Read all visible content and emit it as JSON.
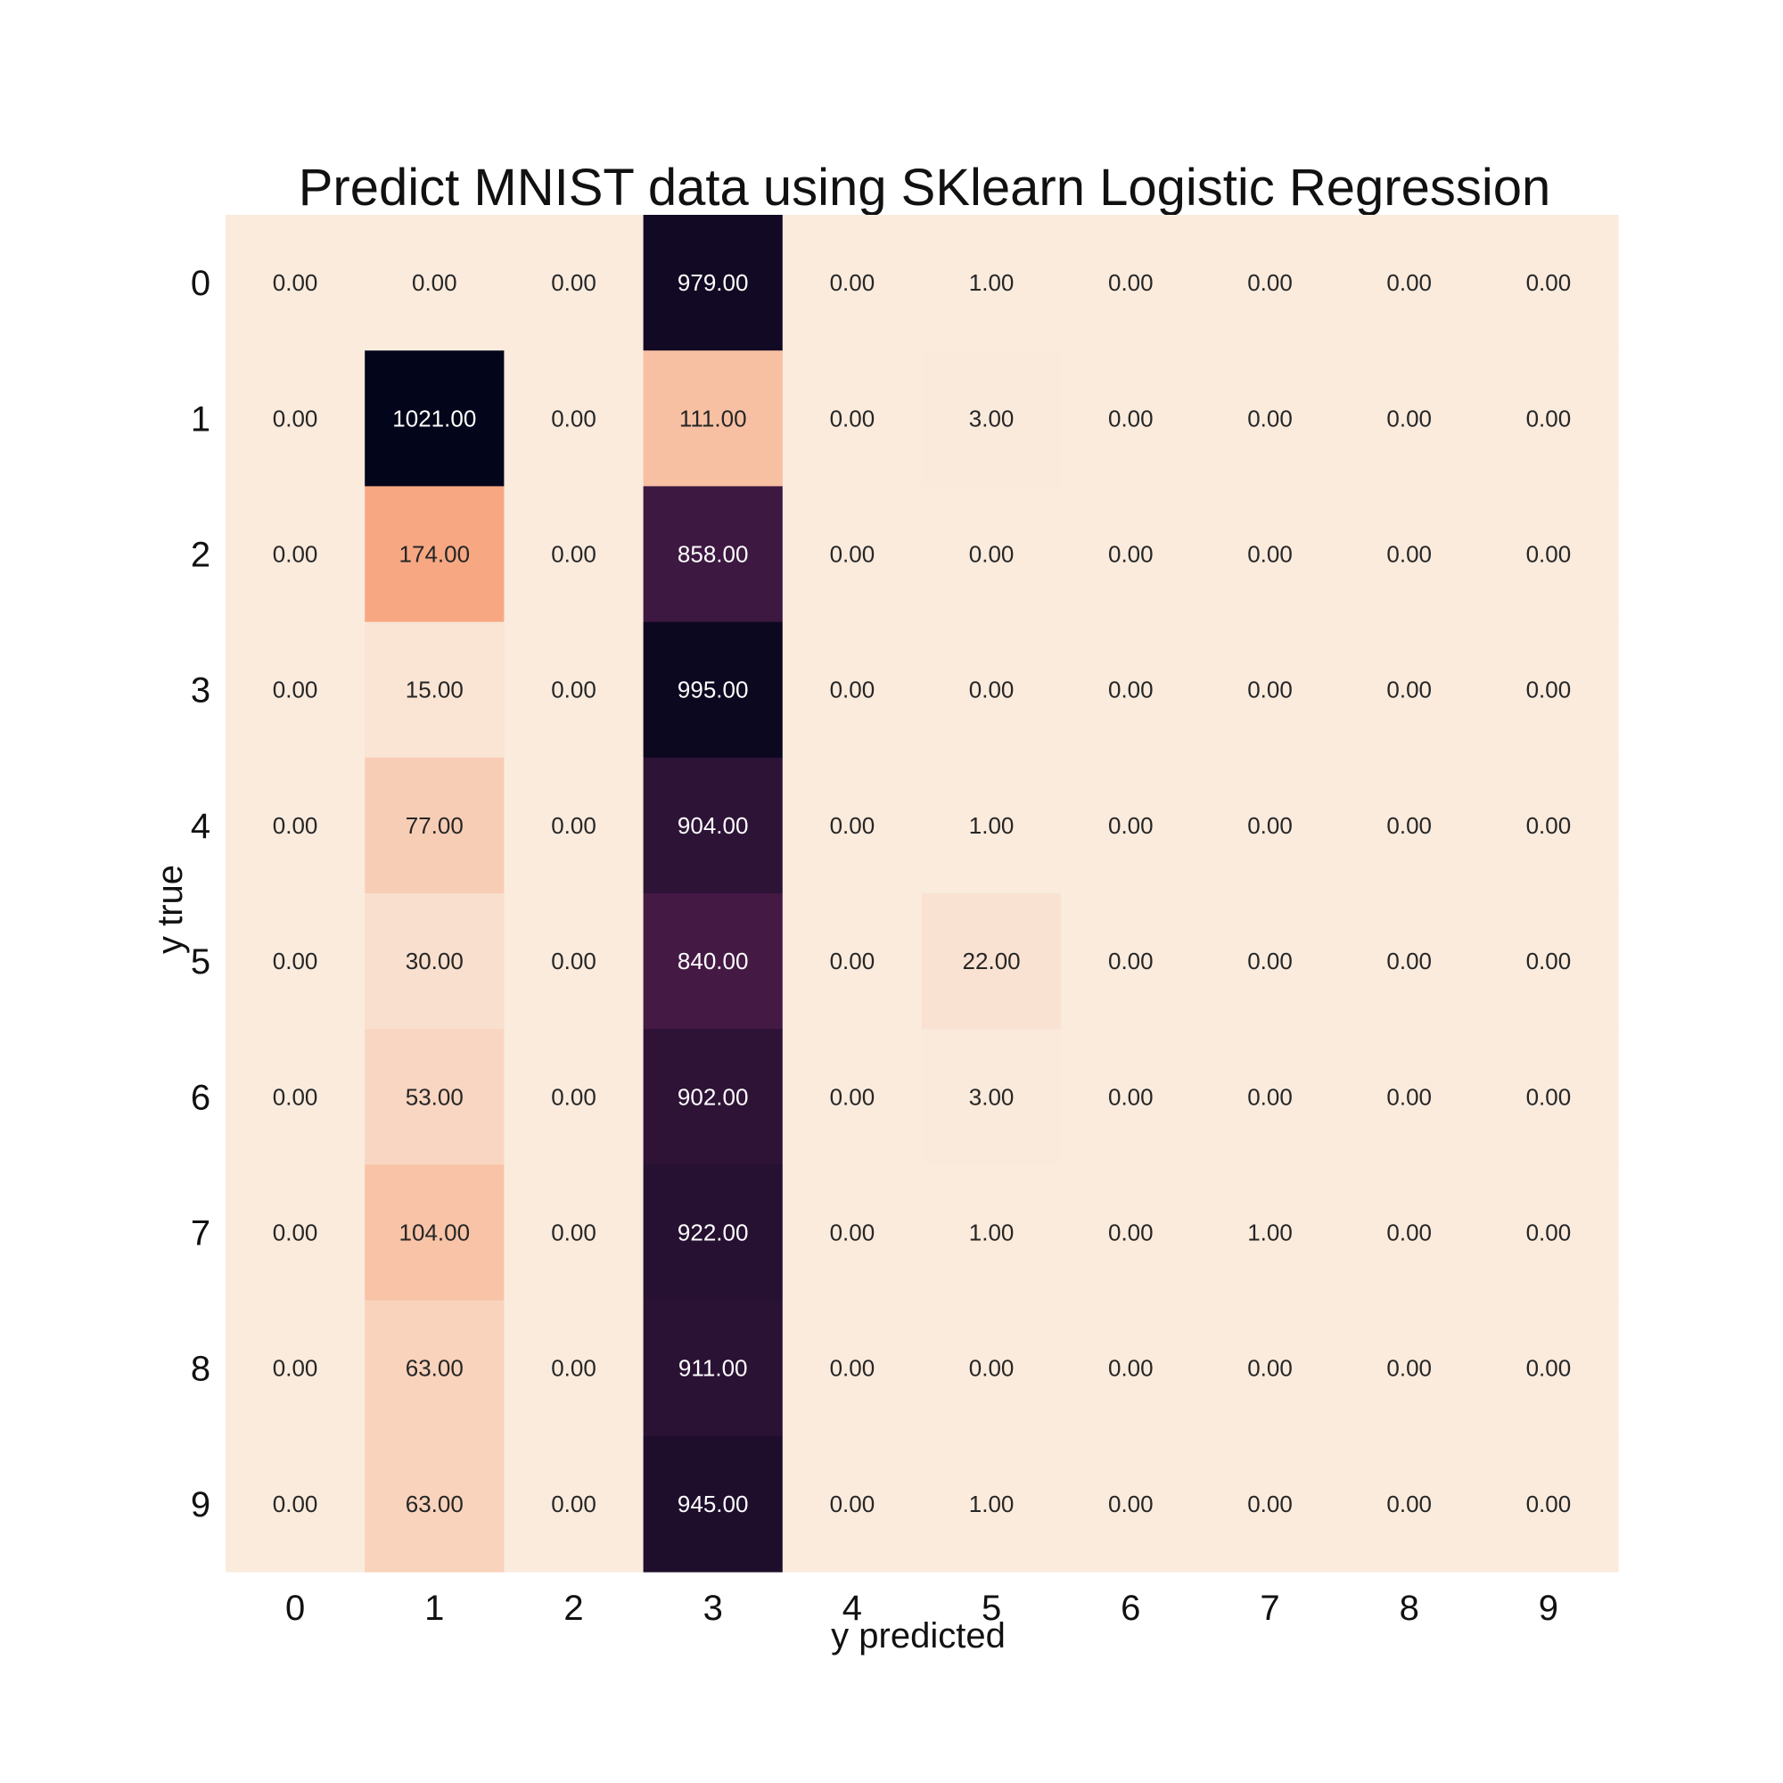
{
  "chart_data": {
    "type": "heatmap",
    "title": "Predict MNIST data using SKlearn Logistic Regression",
    "xlabel": "y predicted",
    "ylabel": "y true",
    "x_categories": [
      "0",
      "1",
      "2",
      "3",
      "4",
      "5",
      "6",
      "7",
      "8",
      "9"
    ],
    "y_categories": [
      "0",
      "1",
      "2",
      "3",
      "4",
      "5",
      "6",
      "7",
      "8",
      "9"
    ],
    "values": [
      [
        0,
        0,
        0,
        979,
        0,
        1,
        0,
        0,
        0,
        0
      ],
      [
        0,
        1021,
        0,
        111,
        0,
        3,
        0,
        0,
        0,
        0
      ],
      [
        0,
        174,
        0,
        858,
        0,
        0,
        0,
        0,
        0,
        0
      ],
      [
        0,
        15,
        0,
        995,
        0,
        0,
        0,
        0,
        0,
        0
      ],
      [
        0,
        77,
        0,
        904,
        0,
        1,
        0,
        0,
        0,
        0
      ],
      [
        0,
        30,
        0,
        840,
        0,
        22,
        0,
        0,
        0,
        0
      ],
      [
        0,
        53,
        0,
        902,
        0,
        3,
        0,
        0,
        0,
        0
      ],
      [
        0,
        104,
        0,
        922,
        0,
        1,
        0,
        1,
        0,
        0
      ],
      [
        0,
        63,
        0,
        911,
        0,
        0,
        0,
        0,
        0,
        0
      ],
      [
        0,
        63,
        0,
        945,
        0,
        1,
        0,
        0,
        0,
        0
      ]
    ],
    "value_format": "0.00",
    "colormap": [
      "#03051a",
      "#4c1d4b",
      "#a11a5b",
      "#e83f3f",
      "#f69c73",
      "#faebdd"
    ],
    "colorbar": false,
    "grid": false
  }
}
